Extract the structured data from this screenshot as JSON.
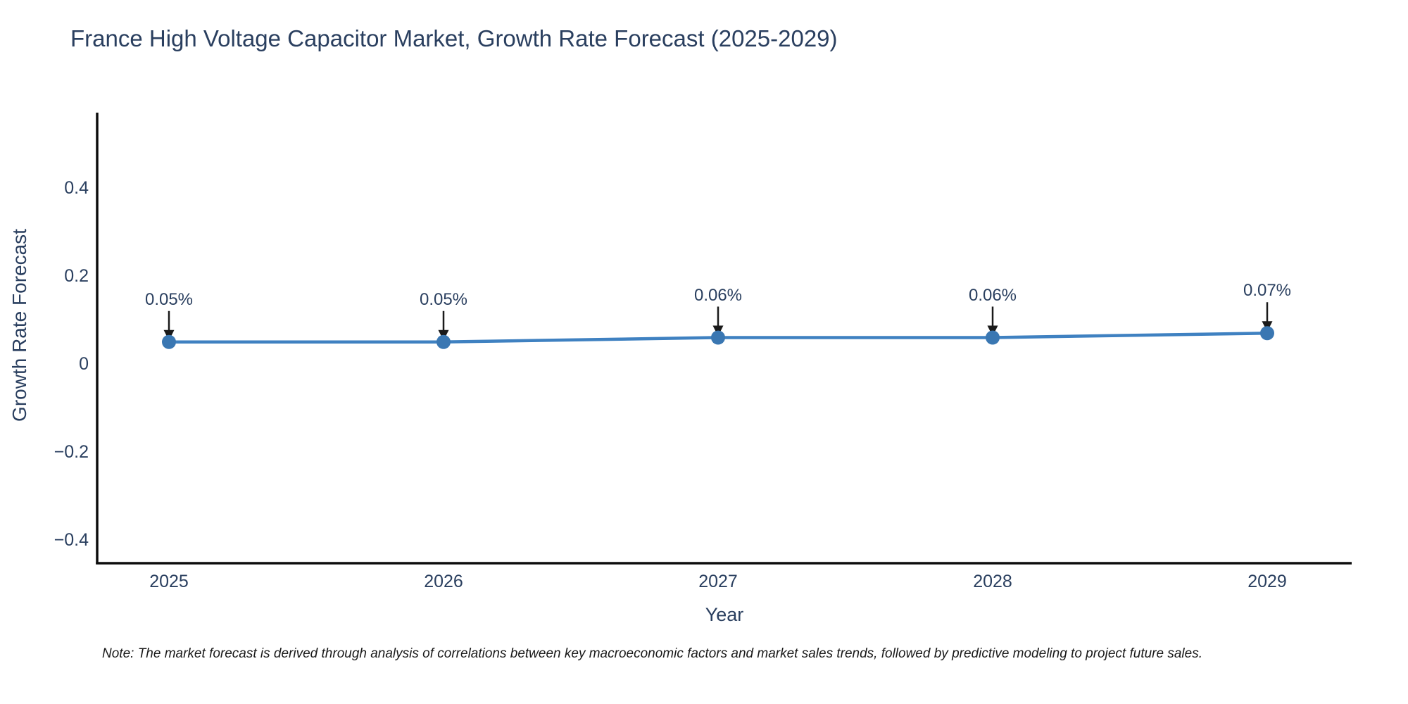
{
  "title": "France High Voltage Capacitor Market, Growth Rate Forecast (2025-2029)",
  "note": "Note: The market forecast is derived through analysis of correlations between key macroeconomic factors and market sales trends, followed by predictive modeling to project future sales.",
  "chart_data": {
    "type": "line",
    "categories": [
      "2025",
      "2026",
      "2027",
      "2028",
      "2029"
    ],
    "values": [
      0.05,
      0.05,
      0.06,
      0.06,
      0.07
    ],
    "data_labels": [
      "0.05%",
      "0.05%",
      "0.06%",
      "0.06%",
      "0.07%"
    ],
    "title": "France High Voltage Capacitor Market, Growth Rate Forecast (2025-2029)",
    "xlabel": "Year",
    "ylabel": "Growth Rate Forecast",
    "ytick_values": [
      0.4,
      0.2,
      0,
      -0.2,
      -0.4
    ],
    "ytick_labels": [
      "0.4",
      "0.2",
      "0",
      "−0.2",
      "−0.4"
    ],
    "ylim": [
      -0.45,
      0.58
    ],
    "grid": false,
    "legend": false,
    "annotations_have_arrows": true,
    "colors": {
      "line": "#3f81c1",
      "marker": "#3a77b2",
      "axis": "#0d0d0d",
      "text": "#2a3f5f",
      "arrow": "#1a1a1a",
      "background": "#ffffff"
    }
  }
}
